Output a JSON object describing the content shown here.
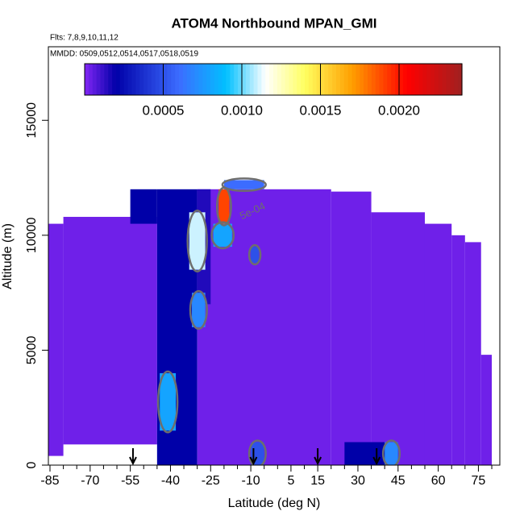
{
  "chart_data": {
    "type": "heatmap",
    "title": "ATOM4 Northbound MPAN_GMI",
    "subtitle": "Flts: 7,8,9,10,11,12",
    "annotation": "MMDD: 0509,0512,0514,0517,0518,0519",
    "xlabel": "Latitude (deg N)",
    "ylabel": "Altitude (m)",
    "contour_label": "5e-04",
    "contour_level": 0.0005,
    "contour_color": "#6e6e6e",
    "xlim": [
      -85.6,
      83
    ],
    "xticks": [
      -85,
      -70,
      -55,
      -40,
      -25,
      -10,
      5,
      15,
      30,
      45,
      60,
      75
    ],
    "xminorticks": [
      -80,
      -75,
      -65,
      -60,
      -50,
      -45,
      -35,
      -30,
      -20,
      -15,
      -5,
      0,
      10,
      20,
      25,
      35,
      40,
      50,
      55,
      65,
      70,
      80
    ],
    "ylim": [
      0,
      18200
    ],
    "yticks": [
      0,
      5000,
      10000,
      15000
    ],
    "zlim": [
      0,
      0.0024
    ],
    "zticks": [
      0.0005,
      {
        "value": 0.001,
        "label": "0.0010"
      },
      0.0015,
      {
        "value": 0.002,
        "label": "0.0020"
      }
    ],
    "colorscale": [
      [
        0,
        "#8226f5"
      ],
      [
        0.0002,
        "#0000a8"
      ],
      [
        0.0006,
        "#3c6cff"
      ],
      [
        0.0009,
        "#00c0ff"
      ],
      [
        0.00115,
        "#ffffff"
      ],
      [
        0.0014,
        "#ffff60"
      ],
      [
        0.0017,
        "#ff9f00"
      ],
      [
        0.00205,
        "#ff0000"
      ],
      [
        0.0024,
        "#a02020"
      ]
    ],
    "markers": [
      -54,
      -9,
      15,
      37
    ],
    "cells": [
      {
        "lat": [
          -86,
          -80
        ],
        "alt": [
          400,
          10500
        ],
        "value": 3e-05
      },
      {
        "lat": [
          -80,
          -45
        ],
        "alt": [
          900,
          10800
        ],
        "value": 3e-05
      },
      {
        "lat": [
          -45,
          -30
        ],
        "alt": [
          0,
          12000
        ],
        "value": 0.0002
      },
      {
        "lat": [
          -30,
          20
        ],
        "alt": [
          0,
          12000
        ],
        "value": 3e-05
      },
      {
        "lat": [
          20,
          35
        ],
        "alt": [
          0,
          11900
        ],
        "value": 3e-05
      },
      {
        "lat": [
          35,
          55
        ],
        "alt": [
          0,
          11000
        ],
        "value": 3e-05
      },
      {
        "lat": [
          55,
          65
        ],
        "alt": [
          0,
          10500
        ],
        "value": 3e-05
      },
      {
        "lat": [
          65,
          70
        ],
        "alt": [
          0,
          10000
        ],
        "value": 3e-05
      },
      {
        "lat": [
          70,
          76
        ],
        "alt": [
          0,
          9700
        ],
        "value": 3e-05
      },
      {
        "lat": [
          76,
          80
        ],
        "alt": [
          0,
          4800
        ],
        "value": 3e-05
      },
      {
        "lat": [
          -55,
          -45
        ],
        "alt": [
          10500,
          12000
        ],
        "value": 0.0002
      },
      {
        "lat": [
          -30,
          -25
        ],
        "alt": [
          7000,
          12000
        ],
        "value": 0.00015
      },
      {
        "lat": [
          -44,
          -38
        ],
        "alt": [
          1500,
          4000
        ],
        "value": 0.0008
      },
      {
        "lat": [
          -32,
          -27
        ],
        "alt": [
          6000,
          7500
        ],
        "value": 0.0007
      },
      {
        "lat": [
          -33,
          -27
        ],
        "alt": [
          8500,
          11000
        ],
        "value": 0.0011
      },
      {
        "lat": [
          -24,
          -17
        ],
        "alt": [
          9500,
          10500
        ],
        "value": 0.0008
      },
      {
        "lat": [
          -22,
          -18
        ],
        "alt": [
          10500,
          12000
        ],
        "value": 0.0019
      },
      {
        "lat": [
          -20,
          -5
        ],
        "alt": [
          12000,
          12400
        ],
        "value": 0.0006
      },
      {
        "lat": [
          -10,
          -7
        ],
        "alt": [
          8800,
          9500
        ],
        "value": 0.0005
      },
      {
        "lat": [
          -10,
          -5
        ],
        "alt": [
          0,
          1000
        ],
        "value": 0.0005
      },
      {
        "lat": [
          25,
          45
        ],
        "alt": [
          0,
          1000
        ],
        "value": 0.0002
      },
      {
        "lat": [
          40,
          45
        ],
        "alt": [
          0,
          1000
        ],
        "value": 0.0007
      }
    ]
  }
}
